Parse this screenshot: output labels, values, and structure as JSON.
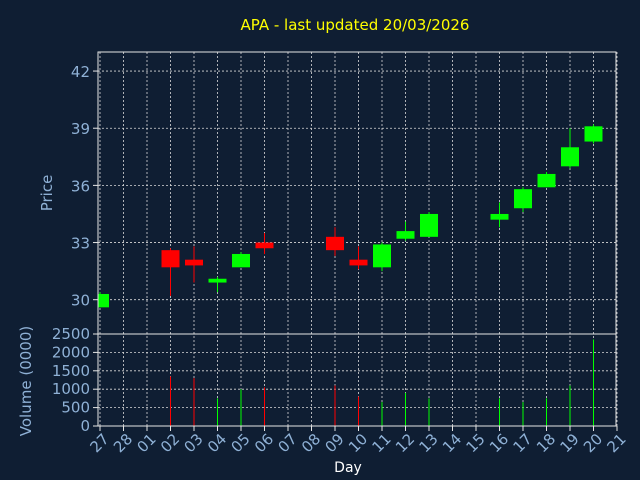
{
  "chart_data": {
    "type": "candlestick",
    "title": "APA - last updated 20/03/2026",
    "xlabel": "Day",
    "price_ylabel": "Price",
    "volume_ylabel": "Volume (0000)",
    "x_ticks": [
      "27",
      "28",
      "01",
      "02",
      "03",
      "04",
      "05",
      "06",
      "07",
      "08",
      "09",
      "10",
      "11",
      "12",
      "13",
      "14",
      "15",
      "16",
      "17",
      "18",
      "19",
      "20",
      "21"
    ],
    "price_yticks": [
      30,
      33,
      36,
      39,
      42
    ],
    "price_ylim": [
      28.2,
      43.0
    ],
    "volume_yticks": [
      0,
      500,
      1000,
      1500,
      2000,
      2500
    ],
    "volume_ylim": [
      0,
      2500
    ],
    "up_color": "#00ff00",
    "down_color": "#ff0000",
    "candles": [
      {
        "x": "27",
        "open": 29.6,
        "high": 30.4,
        "low": 29.6,
        "close": 30.3,
        "volume": 0
      },
      {
        "x": "02",
        "open": 32.6,
        "high": 32.7,
        "low": 30.2,
        "close": 31.7,
        "volume": 1350
      },
      {
        "x": "03",
        "open": 32.1,
        "high": 32.8,
        "low": 30.9,
        "close": 31.8,
        "volume": 1300
      },
      {
        "x": "04",
        "open": 30.9,
        "high": 31.2,
        "low": 30.4,
        "close": 31.1,
        "volume": 750
      },
      {
        "x": "05",
        "open": 31.7,
        "high": 32.5,
        "low": 31.7,
        "close": 32.4,
        "volume": 1000
      },
      {
        "x": "06",
        "open": 33.0,
        "high": 33.5,
        "low": 32.4,
        "close": 32.7,
        "volume": 1050
      },
      {
        "x": "09",
        "open": 33.3,
        "high": 33.8,
        "low": 32.3,
        "close": 32.6,
        "volume": 1100
      },
      {
        "x": "10",
        "open": 32.1,
        "high": 32.8,
        "low": 31.6,
        "close": 31.8,
        "volume": 800
      },
      {
        "x": "11",
        "open": 31.7,
        "high": 33.0,
        "low": 31.5,
        "close": 32.9,
        "volume": 650
      },
      {
        "x": "12",
        "open": 33.2,
        "high": 34.1,
        "low": 33.1,
        "close": 33.6,
        "volume": 900
      },
      {
        "x": "13",
        "open": 33.3,
        "high": 34.6,
        "low": 33.3,
        "close": 34.5,
        "volume": 750
      },
      {
        "x": "16",
        "open": 34.2,
        "high": 35.1,
        "low": 33.8,
        "close": 34.5,
        "volume": 750
      },
      {
        "x": "17",
        "open": 34.8,
        "high": 35.9,
        "low": 34.6,
        "close": 35.8,
        "volume": 650
      },
      {
        "x": "18",
        "open": 35.9,
        "high": 36.7,
        "low": 35.9,
        "close": 36.6,
        "volume": 750
      },
      {
        "x": "19",
        "open": 37.0,
        "high": 39.0,
        "low": 36.9,
        "close": 38.0,
        "volume": 1100
      },
      {
        "x": "20",
        "open": 38.3,
        "high": 39.2,
        "low": 38.2,
        "close": 39.1,
        "volume": 2350
      }
    ]
  }
}
